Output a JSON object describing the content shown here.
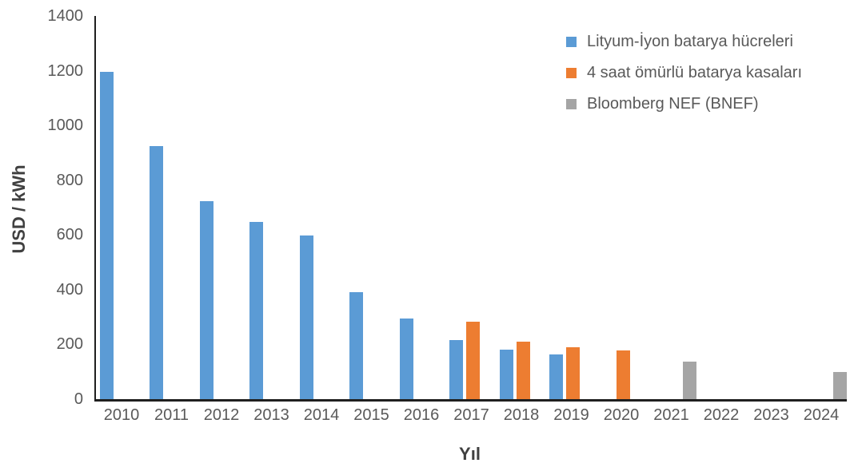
{
  "chart_data": {
    "type": "bar",
    "title": "",
    "xlabel": "Yıl",
    "ylabel": "USD / kWh",
    "ylim": [
      0,
      1400
    ],
    "ytick_step": 200,
    "yticks": [
      0,
      200,
      400,
      600,
      800,
      1000,
      1200,
      1400
    ],
    "grid": false,
    "legend_position": "top-right",
    "categories": [
      "2010",
      "2011",
      "2012",
      "2013",
      "2014",
      "2015",
      "2016",
      "2017",
      "2018",
      "2019",
      "2020",
      "2021",
      "2022",
      "2023",
      "2024"
    ],
    "series": [
      {
        "name": "Lityum-İyon batarya hücreleri",
        "color": "#5B9BD5",
        "values": [
          1195,
          924,
          723,
          648,
          597,
          391,
          295,
          216,
          181,
          163,
          null,
          null,
          null,
          null,
          null
        ]
      },
      {
        "name": "4 saat ömürlü batarya kasaları",
        "color": "#ED7D31",
        "values": [
          null,
          null,
          null,
          null,
          null,
          null,
          null,
          283,
          210,
          190,
          178,
          null,
          null,
          null,
          null
        ]
      },
      {
        "name": "Bloomberg NEF (BNEF)",
        "color": "#A5A5A5",
        "values": [
          null,
          null,
          null,
          null,
          null,
          null,
          null,
          null,
          null,
          null,
          null,
          137,
          null,
          null,
          99
        ]
      }
    ]
  },
  "colors": {
    "axis_line": "#1f1f1f",
    "tick_text": "#595959",
    "axis_title_text": "#404040",
    "background": "#ffffff"
  }
}
